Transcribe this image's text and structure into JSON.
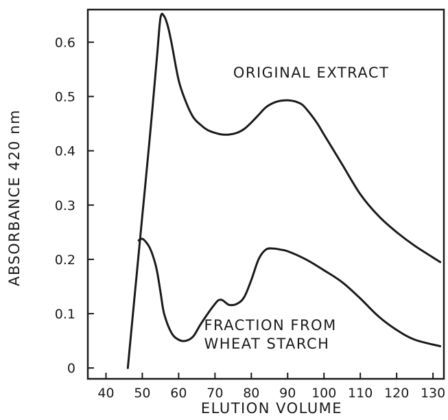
{
  "chart_data": {
    "type": "line",
    "xlabel": "ELUTION VOLUME",
    "ylabel": "ABSORBANCE 420 nm",
    "xlim": [
      35,
      133
    ],
    "ylim": [
      -0.02,
      0.66
    ],
    "x_ticks": [
      40,
      50,
      60,
      70,
      80,
      90,
      100,
      110,
      120,
      130
    ],
    "y_ticks": [
      0,
      0.1,
      0.2,
      0.3,
      0.4,
      0.5,
      0.6
    ],
    "y_tick_labels": [
      "0",
      "0.1",
      "0.2",
      "0.3",
      "0.4",
      "0.5",
      "0.6"
    ],
    "annotations": [
      {
        "lines": [
          "ORIGINAL EXTRACT"
        ],
        "x": 75,
        "y": 0.535
      },
      {
        "lines": [
          "FRACTION FROM",
          "WHEAT STARCH"
        ],
        "x": 67,
        "y": 0.07
      }
    ],
    "series": [
      {
        "x": [
          46,
          48,
          50,
          52,
          54,
          55,
          56,
          57,
          58,
          60,
          62,
          64,
          66,
          68,
          70,
          72,
          74,
          76,
          78,
          80,
          82,
          84,
          86,
          88,
          90,
          92,
          94,
          96,
          98,
          100,
          105,
          110,
          115,
          120,
          125,
          132
        ],
        "values": [
          0.0,
          0.14,
          0.28,
          0.42,
          0.57,
          0.645,
          0.648,
          0.63,
          0.6,
          0.53,
          0.49,
          0.462,
          0.448,
          0.438,
          0.433,
          0.43,
          0.43,
          0.433,
          0.44,
          0.452,
          0.466,
          0.48,
          0.488,
          0.492,
          0.493,
          0.491,
          0.485,
          0.47,
          0.452,
          0.43,
          0.375,
          0.32,
          0.28,
          0.25,
          0.225,
          0.195
        ]
      },
      {
        "x": [
          49,
          50,
          51,
          52,
          53,
          54,
          55,
          56,
          58,
          60,
          62,
          64,
          66,
          68,
          70,
          71,
          72,
          73,
          74,
          76,
          78,
          80,
          82,
          84,
          86,
          88,
          90,
          95,
          100,
          105,
          110,
          115,
          120,
          125,
          132
        ],
        "values": [
          0.235,
          0.238,
          0.232,
          0.222,
          0.205,
          0.18,
          0.14,
          0.1,
          0.065,
          0.052,
          0.05,
          0.058,
          0.08,
          0.1,
          0.118,
          0.125,
          0.125,
          0.12,
          0.116,
          0.118,
          0.13,
          0.162,
          0.2,
          0.218,
          0.22,
          0.218,
          0.215,
          0.2,
          0.18,
          0.158,
          0.128,
          0.095,
          0.07,
          0.052,
          0.04
        ]
      }
    ]
  }
}
